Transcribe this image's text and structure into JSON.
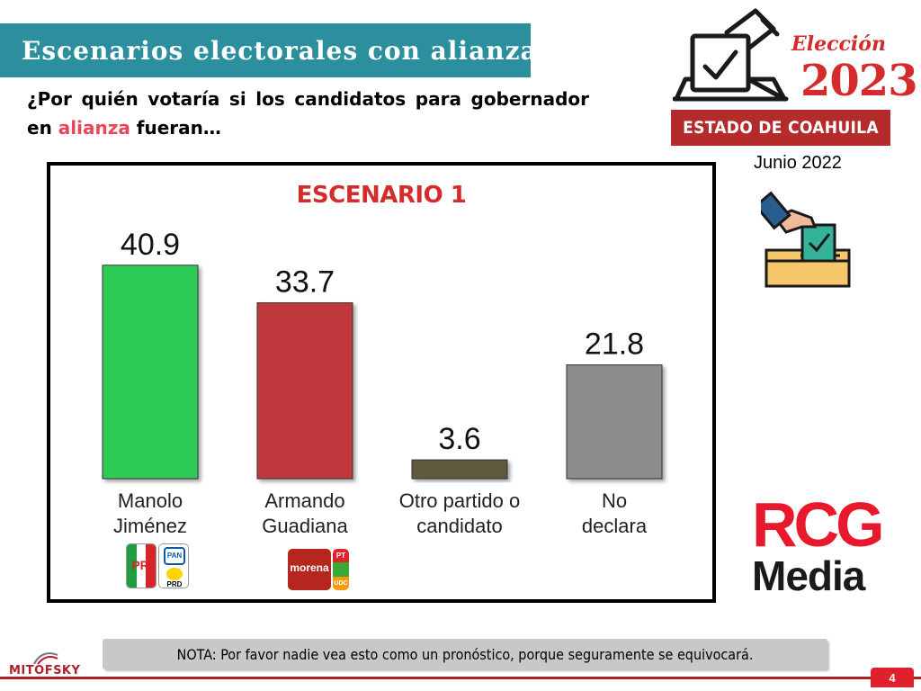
{
  "header": {
    "title": "Escenarios electorales con alianzas",
    "question_part1": "¿Por quién votaría si los candidatos para gobernador en ",
    "question_highlight": "alianza",
    "question_part2": " fueran…"
  },
  "election_logo": {
    "word": "Elección",
    "year": "2023",
    "state": "ESTADO DE COAHUILA",
    "date": "Junio 2022"
  },
  "chart_data": {
    "type": "bar",
    "title": "ESCENARIO 1",
    "categories": [
      [
        "Manolo",
        "Jiménez"
      ],
      [
        "Armando",
        "Guadiana"
      ],
      [
        "Otro partido o",
        "candidato"
      ],
      [
        "No",
        "declara"
      ]
    ],
    "values": [
      40.9,
      33.7,
      3.6,
      21.8
    ],
    "value_labels": [
      "40.9",
      "33.7",
      "3.6",
      "21.8"
    ],
    "colors": [
      "#2ecc55",
      "#c0393b",
      "#5e5a3a",
      "#8c8c8c"
    ],
    "ylim": [
      0,
      50
    ],
    "grid": false,
    "legend": "none"
  },
  "party_logos": {
    "candidate1": [
      "PRI",
      "PAN",
      "PRD"
    ],
    "candidate2": [
      "morena",
      "PT",
      "VERDE",
      "UDC"
    ]
  },
  "brand": {
    "rcg_top": "RCG",
    "rcg_bottom": "Media",
    "mitofsky": "MITOFSKY"
  },
  "footer": {
    "nota": "NOTA: Por favor nadie vea esto como un pronóstico, porque seguramente se equivocará.",
    "page": "4"
  }
}
